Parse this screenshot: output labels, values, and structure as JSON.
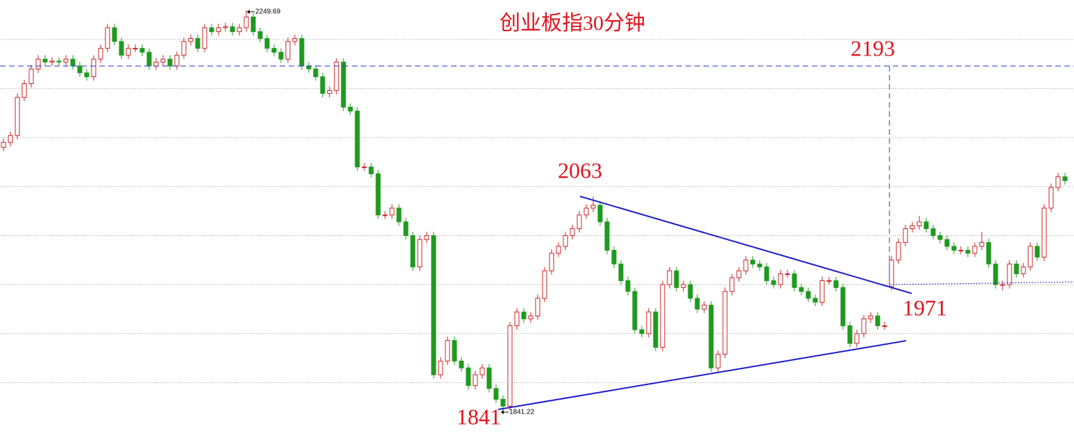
{
  "chart_data": {
    "type": "candlestick",
    "title": "创业板指30分钟",
    "ylim": [
      1818.6,
      2260.3
    ],
    "xlim": [
      -0.5,
      154.3
    ],
    "grid_lines": [
      1870,
      1920,
      1970,
      2020,
      2070,
      2120,
      2170,
      2220
    ],
    "up_color": "#cc2020",
    "down_color": "#1f9a1f",
    "candles": [
      [
        2110,
        2119,
        2106,
        2115
      ],
      [
        2115,
        2126,
        2111,
        2122
      ],
      [
        2122,
        2165,
        2118,
        2161
      ],
      [
        2161,
        2179,
        2157,
        2175
      ],
      [
        2175,
        2194,
        2171,
        2190
      ],
      [
        2190,
        2204,
        2186,
        2200
      ],
      [
        2200,
        2204,
        2193,
        2197
      ],
      [
        2197,
        2202,
        2193,
        2198
      ],
      [
        2198,
        2202,
        2193,
        2197
      ],
      [
        2197,
        2204,
        2193,
        2200
      ],
      [
        2200,
        2204,
        2189,
        2193
      ],
      [
        2193,
        2197,
        2182,
        2186
      ],
      [
        2186,
        2190,
        2178,
        2182
      ],
      [
        2182,
        2204,
        2178,
        2200
      ],
      [
        2200,
        2215,
        2196,
        2211
      ],
      [
        2211,
        2236,
        2207,
        2232
      ],
      [
        2232,
        2236,
        2214,
        2218
      ],
      [
        2218,
        2222,
        2200,
        2204
      ],
      [
        2204,
        2215,
        2200,
        2211
      ],
      [
        2211,
        2215,
        2207,
        2211
      ],
      [
        2211,
        2215,
        2203,
        2207
      ],
      [
        2207,
        2211,
        2189,
        2193
      ],
      [
        2193,
        2201,
        2189,
        2197
      ],
      [
        2197,
        2204,
        2193,
        2200
      ],
      [
        2200,
        2204,
        2189,
        2193
      ],
      [
        2193,
        2208,
        2189,
        2204
      ],
      [
        2204,
        2222,
        2200,
        2218
      ],
      [
        2218,
        2225,
        2214,
        2221
      ],
      [
        2221,
        2225,
        2207,
        2211
      ],
      [
        2211,
        2236,
        2207,
        2232
      ],
      [
        2232,
        2236,
        2224,
        2228
      ],
      [
        2228,
        2236,
        2224,
        2232
      ],
      [
        2232,
        2237,
        2228,
        2233
      ],
      [
        2233,
        2237,
        2224,
        2228
      ],
      [
        2228,
        2236,
        2224,
        2232
      ],
      [
        2232,
        2249.69,
        2228,
        2243
      ],
      [
        2243,
        2247,
        2224,
        2228
      ],
      [
        2228,
        2232,
        2217,
        2221
      ],
      [
        2221,
        2225,
        2207,
        2211
      ],
      [
        2211,
        2215,
        2203,
        2207
      ],
      [
        2207,
        2211,
        2196,
        2200
      ],
      [
        2200,
        2222,
        2196,
        2218
      ],
      [
        2218,
        2225,
        2214,
        2221
      ],
      [
        2221,
        2225,
        2189,
        2193
      ],
      [
        2193,
        2197,
        2186,
        2190
      ],
      [
        2190,
        2194,
        2178,
        2182
      ],
      [
        2182,
        2186,
        2161,
        2165
      ],
      [
        2165,
        2172,
        2161,
        2168
      ],
      [
        2168,
        2201,
        2164,
        2197
      ],
      [
        2197,
        2201,
        2147,
        2151
      ],
      [
        2151,
        2155,
        2143,
        2147
      ],
      [
        2147,
        2151,
        2086,
        2090
      ],
      [
        2090,
        2094,
        2086,
        2090
      ],
      [
        2090,
        2094,
        2079,
        2083
      ],
      [
        2083,
        2087,
        2037,
        2041
      ],
      [
        2041,
        2045,
        2037,
        2041
      ],
      [
        2041,
        2052,
        2037,
        2048
      ],
      [
        2048,
        2052,
        2030,
        2034
      ],
      [
        2034,
        2038,
        2016,
        2020
      ],
      [
        2020,
        2024,
        1984,
        1988
      ],
      [
        1988,
        2020,
        1984,
        2016
      ],
      [
        2016,
        2024,
        2012,
        2020
      ],
      [
        2020,
        2024,
        1874,
        1878
      ],
      [
        1878,
        1896,
        1874,
        1892
      ],
      [
        1892,
        1917,
        1888,
        1913
      ],
      [
        1913,
        1917,
        1888,
        1892
      ],
      [
        1892,
        1896,
        1881,
        1885
      ],
      [
        1885,
        1889,
        1863,
        1867
      ],
      [
        1867,
        1882,
        1863,
        1878
      ],
      [
        1878,
        1889,
        1874,
        1885
      ],
      [
        1885,
        1889,
        1860,
        1864
      ],
      [
        1864,
        1868,
        1849,
        1853
      ],
      [
        1853,
        1857,
        1841.22,
        1846
      ],
      [
        1846,
        1932,
        1842,
        1928
      ],
      [
        1928,
        1946,
        1924,
        1942
      ],
      [
        1942,
        1946,
        1931,
        1935
      ],
      [
        1935,
        1942,
        1931,
        1938
      ],
      [
        1938,
        1960,
        1934,
        1956
      ],
      [
        1956,
        1988,
        1952,
        1984
      ],
      [
        1984,
        2006,
        1980,
        2002
      ],
      [
        2002,
        2013,
        1998,
        2009
      ],
      [
        2009,
        2024,
        2005,
        2020
      ],
      [
        2020,
        2031,
        2016,
        2027
      ],
      [
        2027,
        2045,
        2023,
        2041
      ],
      [
        2041,
        2052,
        2037,
        2048
      ],
      [
        2048,
        2060,
        2044,
        2051
      ],
      [
        2051,
        2055,
        2030,
        2034
      ],
      [
        2034,
        2038,
        2001,
        2005
      ],
      [
        2005,
        2009,
        1987,
        1991
      ],
      [
        1991,
        1995,
        1970,
        1974
      ],
      [
        1974,
        1978,
        1959,
        1963
      ],
      [
        1963,
        1967,
        1920,
        1924
      ],
      [
        1924,
        1928,
        1916,
        1920
      ],
      [
        1920,
        1946,
        1916,
        1942
      ],
      [
        1942,
        1946,
        1902,
        1906
      ],
      [
        1906,
        1974,
        1902,
        1970
      ],
      [
        1970,
        1988,
        1966,
        1984
      ],
      [
        1984,
        1988,
        1963,
        1967
      ],
      [
        1967,
        1974,
        1963,
        1970
      ],
      [
        1970,
        1974,
        1952,
        1956
      ],
      [
        1956,
        1960,
        1941,
        1945
      ],
      [
        1945,
        1953,
        1941,
        1949
      ],
      [
        1949,
        1953,
        1881,
        1885
      ],
      [
        1885,
        1903,
        1881,
        1899
      ],
      [
        1899,
        1967,
        1895,
        1963
      ],
      [
        1963,
        1981,
        1959,
        1977
      ],
      [
        1977,
        1988,
        1973,
        1984
      ],
      [
        1984,
        1999,
        1980,
        1995
      ],
      [
        1995,
        1999,
        1987,
        1991
      ],
      [
        1991,
        1995,
        1984,
        1988
      ],
      [
        1988,
        1992,
        1970,
        1974
      ],
      [
        1974,
        1978,
        1966,
        1970
      ],
      [
        1970,
        1985,
        1966,
        1981
      ],
      [
        1981,
        1985,
        1977,
        1981
      ],
      [
        1981,
        1985,
        1963,
        1967
      ],
      [
        1967,
        1971,
        1959,
        1963
      ],
      [
        1963,
        1967,
        1952,
        1956
      ],
      [
        1956,
        1960,
        1948,
        1952
      ],
      [
        1952,
        1978,
        1948,
        1974
      ],
      [
        1974,
        1978,
        1970,
        1974
      ],
      [
        1974,
        1978,
        1963,
        1967
      ],
      [
        1967,
        1971,
        1924,
        1928
      ],
      [
        1928,
        1932,
        1906,
        1910
      ],
      [
        1910,
        1924,
        1906,
        1920
      ],
      [
        1920,
        1939,
        1916,
        1935
      ],
      [
        1935,
        1942,
        1931,
        1938
      ],
      [
        1938,
        1942,
        1924,
        1928
      ],
      [
        1928,
        1932,
        1924,
        1928
      ],
      [
        1968,
        1999,
        1964,
        1995
      ],
      [
        1995,
        2017,
        1991,
        2013
      ],
      [
        2013,
        2031,
        2009,
        2027
      ],
      [
        2027,
        2034,
        2023,
        2030
      ],
      [
        2030,
        2040,
        2026,
        2034
      ],
      [
        2034,
        2038,
        2023,
        2027
      ],
      [
        2027,
        2031,
        2016,
        2020
      ],
      [
        2020,
        2024,
        2012,
        2016
      ],
      [
        2016,
        2020,
        2005,
        2009
      ],
      [
        2009,
        2013,
        2001,
        2005
      ],
      [
        2005,
        2009,
        2001,
        2005
      ],
      [
        2005,
        2009,
        1998,
        2002
      ],
      [
        2002,
        2013,
        1998,
        2009
      ],
      [
        2009,
        2024,
        2005,
        2013
      ],
      [
        2013,
        2017,
        1987,
        1991
      ],
      [
        1991,
        1995,
        1966,
        1970
      ],
      [
        1970,
        1974,
        1964,
        1970
      ],
      [
        1970,
        1995,
        1966,
        1991
      ],
      [
        1991,
        1995,
        1977,
        1981
      ],
      [
        1981,
        1992,
        1977,
        1988
      ],
      [
        1988,
        2013,
        1984,
        2009
      ],
      [
        2009,
        2013,
        1994,
        1998
      ],
      [
        1998,
        2052,
        1994,
        2048
      ],
      [
        2048,
        2073,
        2044,
        2069
      ],
      [
        2069,
        2084,
        2065,
        2080
      ],
      [
        2080,
        2084,
        2072,
        2076
      ]
    ],
    "hline": {
      "value": 2193,
      "color": "#2233cc",
      "x_end": 154.3
    },
    "vline": {
      "x": 127.7,
      "y": [
        2193,
        1970
      ],
      "color": "#2233cc"
    },
    "dotted_line": {
      "x": [
        127.8,
        154.3
      ],
      "y": [
        1970,
        1972.7
      ],
      "color": "#2233cc"
    },
    "trendlines": [
      {
        "x": [
          83.1,
          130.9
        ],
        "y": [
          2060,
          1961
        ],
        "color": "#1a1acc"
      },
      {
        "x": [
          71.3,
          130.1
        ],
        "y": [
          1842.6,
          1912.7
        ],
        "color": "#1a1acc"
      }
    ],
    "annotations": [
      "2193",
      "2063",
      "1971",
      "1841"
    ],
    "extreme_labels": [
      "2249.69",
      "1841.22"
    ],
    "annotation_color": "#e0141e"
  }
}
